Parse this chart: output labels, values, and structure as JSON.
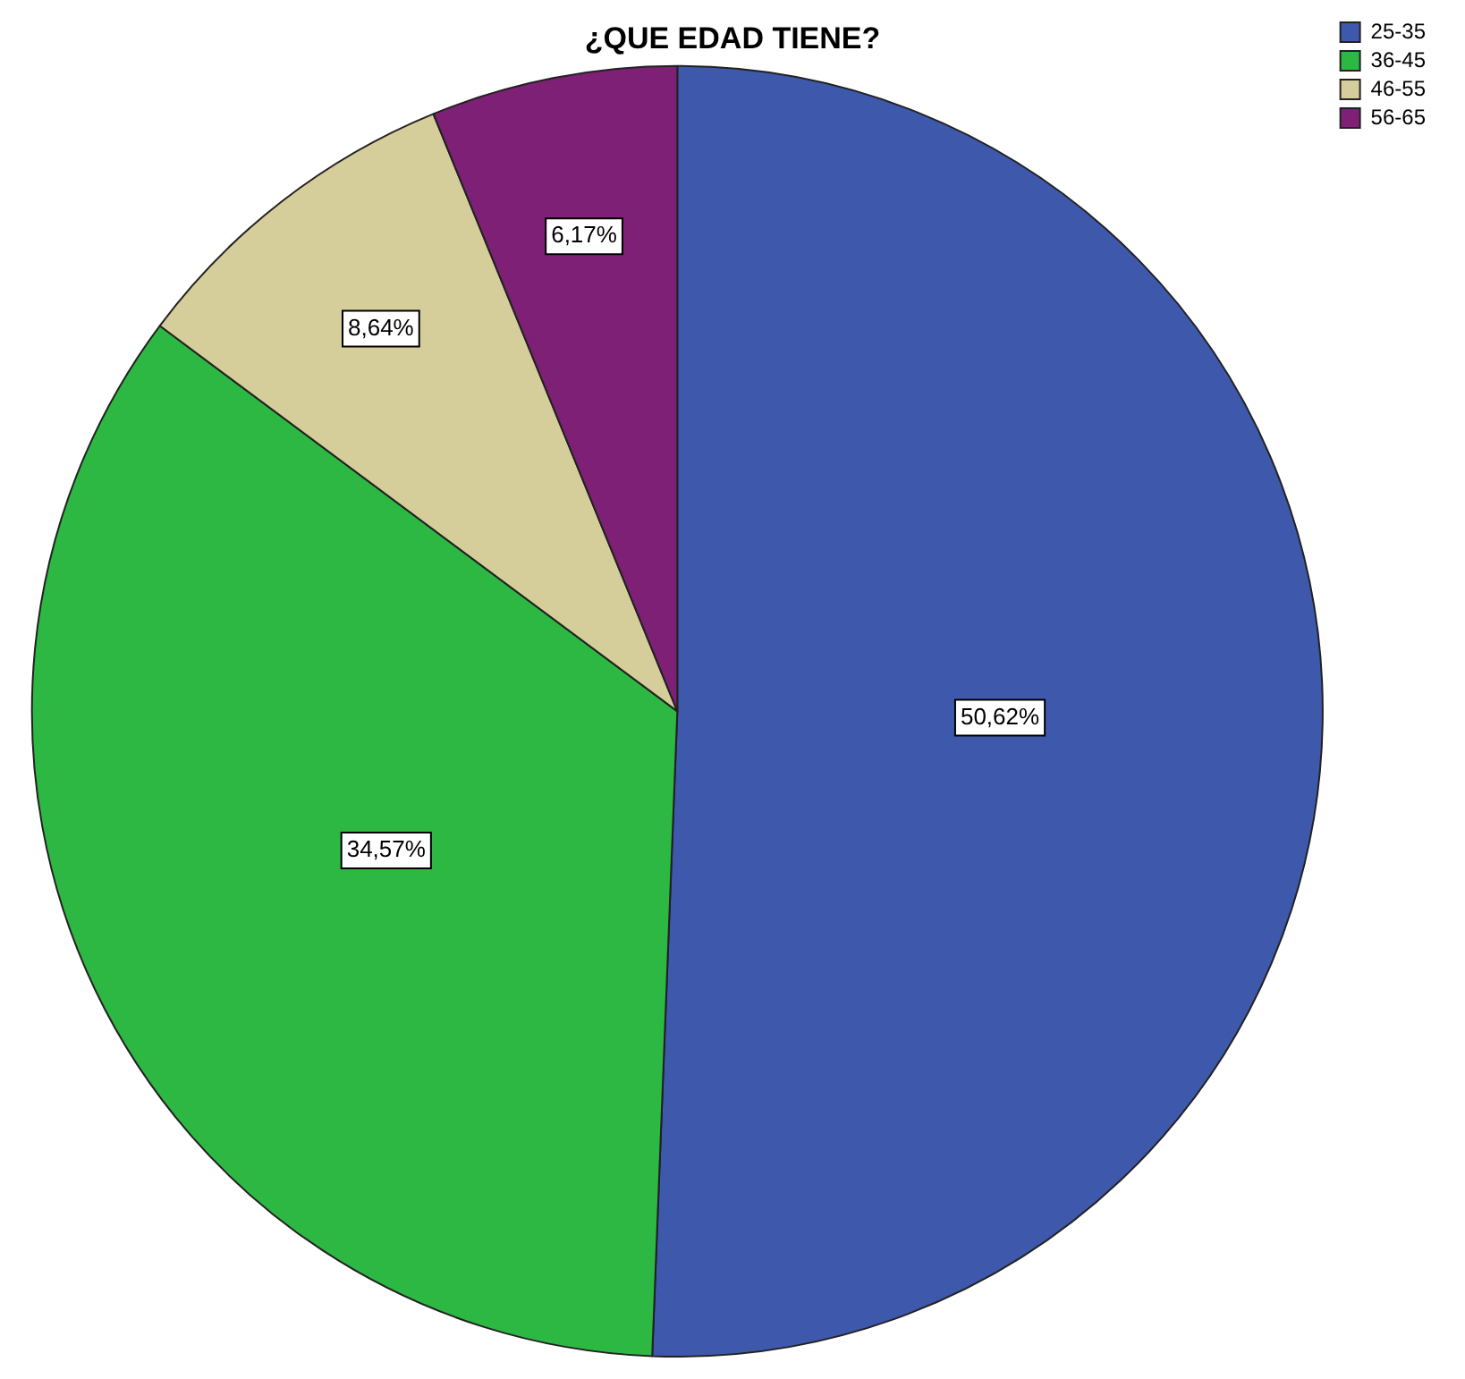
{
  "chart_data": {
    "type": "pie",
    "title": "¿QUE EDAD TIENE?",
    "categories": [
      "25-35",
      "36-45",
      "46-55",
      "56-65"
    ],
    "values": [
      50.62,
      34.57,
      8.64,
      6.17
    ],
    "colors": [
      "#3e58ac",
      "#2db843",
      "#d5cd9a",
      "#7e2075"
    ],
    "value_labels": [
      "50,62%",
      "34,57%",
      "8,64%",
      "6,17%"
    ],
    "legend": "top right"
  }
}
